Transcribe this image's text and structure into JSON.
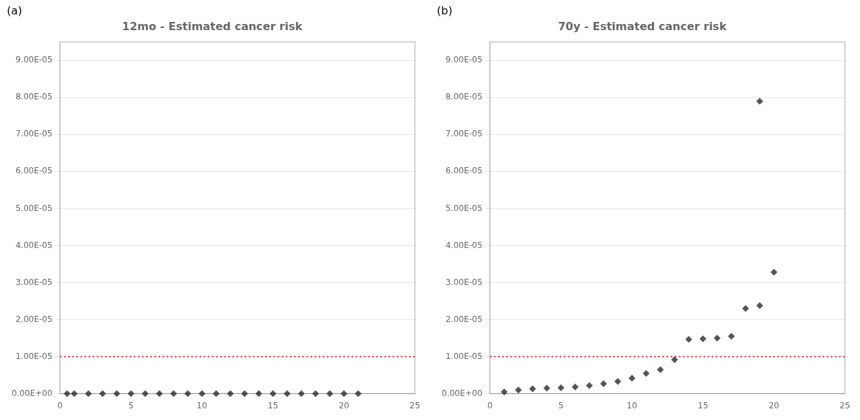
{
  "chart_data": [
    {
      "type": "scatter",
      "title": "12mo - Estimated cancer risk",
      "panel_label": "(a)",
      "x": [
        0.5,
        1,
        2,
        3,
        4,
        5,
        6,
        7,
        8,
        9,
        10,
        11,
        12,
        13,
        14,
        15,
        16,
        17,
        18,
        19,
        20,
        21
      ],
      "values": [
        0,
        0,
        0,
        0,
        0,
        0,
        0,
        0,
        0,
        0,
        0,
        0,
        0,
        0,
        0,
        0,
        0,
        0,
        0,
        0,
        0,
        0
      ],
      "color": "#555555",
      "marker": "diamond",
      "reference_lines": [
        {
          "y": 1e-05,
          "color": "#ff0000",
          "line_style": "dotted"
        }
      ],
      "xlim": [
        0,
        25
      ],
      "xticks": [
        0,
        5,
        10,
        15,
        20,
        25
      ],
      "ylim": [
        0,
        9.5e-05
      ],
      "yticks": [
        {
          "value": 0,
          "label": "0.00E+00"
        },
        {
          "value": 1e-05,
          "label": "1.00E-05"
        },
        {
          "value": 2e-05,
          "label": "2.00E-05"
        },
        {
          "value": 3e-05,
          "label": "3.00E-05"
        },
        {
          "value": 4e-05,
          "label": "4.00E-05"
        },
        {
          "value": 5e-05,
          "label": "5.00E-05"
        },
        {
          "value": 6e-05,
          "label": "6.00E-05"
        },
        {
          "value": 7e-05,
          "label": "7.00E-05"
        },
        {
          "value": 8e-05,
          "label": "8.00E-05"
        },
        {
          "value": 9e-05,
          "label": "9.00E-05"
        }
      ],
      "grid": "y"
    },
    {
      "type": "scatter",
      "title": "70y - Estimated cancer risk",
      "panel_label": "(b)",
      "x": [
        1,
        2,
        3,
        4,
        5,
        6,
        7,
        8,
        9,
        10,
        11,
        12,
        13,
        14,
        15,
        16,
        17,
        18,
        19,
        20,
        19
      ],
      "values": [
        5e-07,
        1e-06,
        1.3e-06,
        1.5e-06,
        1.6e-06,
        1.8e-06,
        2.2e-06,
        2.7e-06,
        3.3e-06,
        4.2e-06,
        5.5e-06,
        6.5e-06,
        9.2e-06,
        1.47e-05,
        1.48e-05,
        1.5e-05,
        1.55e-05,
        2.3e-05,
        2.38e-05,
        3.28e-05,
        7.9e-05
      ],
      "color": "#555555",
      "marker": "diamond",
      "reference_lines": [
        {
          "y": 1e-05,
          "color": "#ff0000",
          "line_style": "dotted"
        }
      ],
      "xlim": [
        0,
        25
      ],
      "xticks": [
        0,
        5,
        10,
        15,
        20,
        25
      ],
      "ylim": [
        0,
        9.5e-05
      ],
      "yticks": [
        {
          "value": 0,
          "label": "0.00E+00"
        },
        {
          "value": 1e-05,
          "label": "1.00E-05"
        },
        {
          "value": 2e-05,
          "label": "2.00E-05"
        },
        {
          "value": 3e-05,
          "label": "3.00E-05"
        },
        {
          "value": 4e-05,
          "label": "4.00E-05"
        },
        {
          "value": 5e-05,
          "label": "5.00E-05"
        },
        {
          "value": 6e-05,
          "label": "6.00E-05"
        },
        {
          "value": 7e-05,
          "label": "7.00E-05"
        },
        {
          "value": 8e-05,
          "label": "8.00E-05"
        },
        {
          "value": 9e-05,
          "label": "9.00E-05"
        }
      ],
      "grid": "y"
    }
  ]
}
